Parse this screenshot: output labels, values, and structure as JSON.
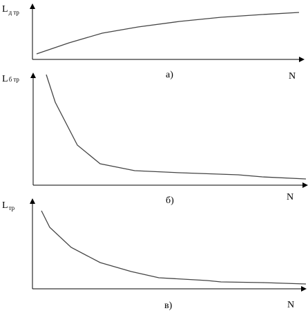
{
  "panels": [
    {
      "y_label": "L",
      "y_label_sub": "д тр",
      "caption": "а)",
      "x_label": "N"
    },
    {
      "y_label": "L",
      "y_label_sub": "б тр",
      "caption": "б)",
      "x_label": "N"
    },
    {
      "y_label": "L",
      "y_label_sub": "тр",
      "caption": "в)",
      "x_label": "N"
    }
  ]
}
